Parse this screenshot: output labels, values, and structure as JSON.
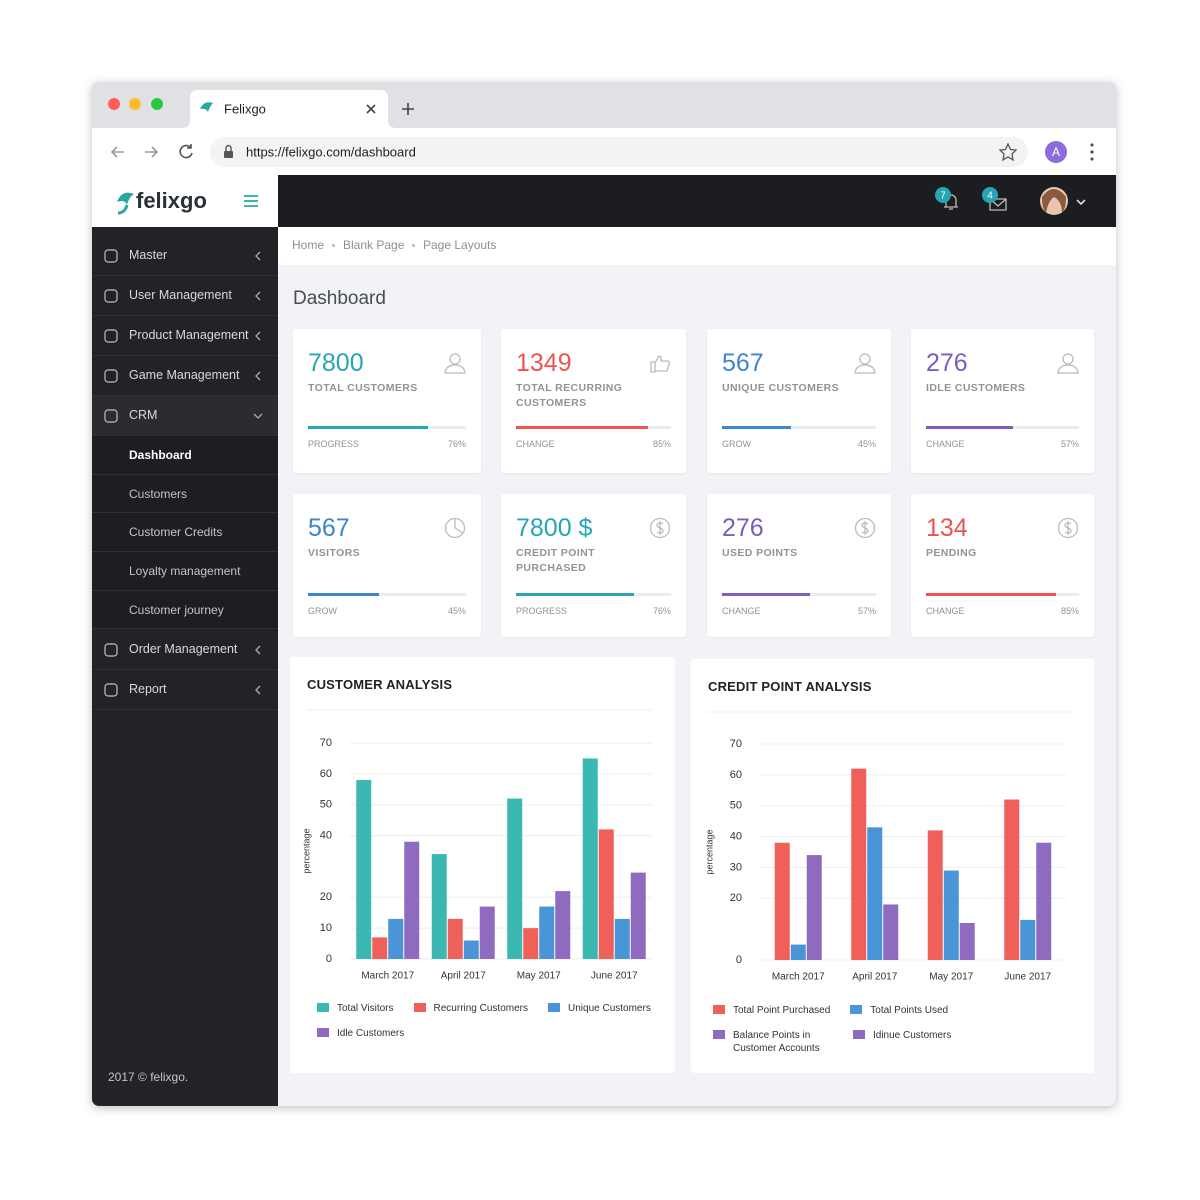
{
  "browser": {
    "tab_title": "Felixgo",
    "url": "https://felixgo.com/dashboard",
    "profile_initial": "A"
  },
  "header": {
    "logo": "felixgo",
    "notifications": 7,
    "messages": 4
  },
  "sidebar": {
    "menu": [
      {
        "label": "Master"
      },
      {
        "label": "User Management"
      },
      {
        "label": "Product Management"
      },
      {
        "label": "Game Management"
      },
      {
        "label": "CRM",
        "items": [
          {
            "label": "Dashboard",
            "active": true
          },
          {
            "label": "Customers"
          },
          {
            "label": "Customer Credits"
          },
          {
            "label": "Loyalty management"
          },
          {
            "label": "Customer journey"
          }
        ]
      },
      {
        "label": "Order Management"
      },
      {
        "label": "Report"
      }
    ],
    "footer": "2017 © felixgo."
  },
  "breadcrumb": [
    "Home",
    "Blank Page",
    "Page Layouts"
  ],
  "page_title": "Dashboard",
  "cards": [
    {
      "value": "7800",
      "label": "TOTAL CUSTOMERS",
      "meter_label": "PROGRESS",
      "progress": {
        "value": 76,
        "label": "76%"
      },
      "color": "#26a6b3"
    },
    {
      "value": "1349",
      "label": "TOTAL RECURRING CUSTOMERS",
      "meter_label": "CHANGE",
      "progress": {
        "value": 85,
        "label": "85%"
      },
      "color": "#ef5350"
    },
    {
      "value": "567",
      "label": "UNIQUE CUSTOMERS",
      "meter_label": "GROW",
      "progress": {
        "value": 45,
        "label": "45%"
      },
      "color": "#3d85cf"
    },
    {
      "value": "276",
      "label": "IDLE CUSTOMERS",
      "meter_label": "CHANGE",
      "progress": {
        "value": 57,
        "label": "57%"
      },
      "color": "#7b5cc0"
    },
    {
      "value": "567",
      "label": "VISITORS",
      "meter_label": "GROW",
      "progress": {
        "value": 45,
        "label": "45%"
      },
      "color": "#3d85cf"
    },
    {
      "value": "7800 $",
      "label": "CREDIT POINT PURCHASED",
      "meter_label": "PROGRESS",
      "progress": {
        "value": 76,
        "label": "76%"
      },
      "color": "#26a6b3"
    },
    {
      "value": "276",
      "label": "USED POINTS",
      "meter_label": "CHANGE",
      "progress": {
        "value": 57,
        "label": "57%"
      },
      "color": "#7b5cc0"
    },
    {
      "value": "134",
      "label": "PENDING",
      "meter_label": "CHANGE",
      "progress": {
        "value": 85,
        "label": "85%"
      },
      "color": "#ef5350"
    }
  ],
  "chart_data": [
    {
      "type": "bar",
      "title": "CUSTOMER ANALYSIS",
      "y_label": "percentage",
      "categories": [
        "March 2017",
        "April 2017",
        "May 2017",
        "June 2017"
      ],
      "series": [
        {
          "name": "Total Visitors",
          "color": "#3cb8b3",
          "values": [
            58,
            34,
            52,
            65
          ]
        },
        {
          "name": "Recurring Customers",
          "color": "#f0605a",
          "values": [
            7,
            13,
            10,
            42
          ]
        },
        {
          "name": "Unique Customers",
          "color": "#4a94d8",
          "values": [
            13,
            6,
            17,
            13
          ]
        },
        {
          "name": "Idle Customers",
          "color": "#8e6bbf",
          "values": [
            38,
            17,
            22,
            28
          ]
        }
      ],
      "ylim": [
        0,
        70
      ],
      "yticks": [
        0,
        10,
        20,
        40,
        50,
        60,
        70
      ],
      "grid": true
    },
    {
      "type": "bar",
      "title": "CREDIT POINT ANALYSIS",
      "y_label": "percentage",
      "categories": [
        "March 2017",
        "April 2017",
        "May 2017",
        "June 2017"
      ],
      "series": [
        {
          "name": "Total Point Purchased",
          "color": "#f0605a",
          "values": [
            38,
            62,
            42,
            52
          ]
        },
        {
          "name": "Total Points Used",
          "color": "#4a94d8",
          "values": [
            5,
            43,
            29,
            13
          ]
        },
        {
          "name": "Balance Points in Customer Accounts",
          "color": "#8e6bbf",
          "values": [
            34,
            18,
            12,
            38
          ]
        },
        {
          "name": "Idinue Customers",
          "color": "#8e6bbf",
          "values": [
            null,
            null,
            null,
            null
          ]
        }
      ],
      "ylim": [
        0,
        70
      ],
      "yticks": [
        0,
        20,
        30,
        40,
        50,
        60,
        70
      ],
      "grid": true
    }
  ]
}
